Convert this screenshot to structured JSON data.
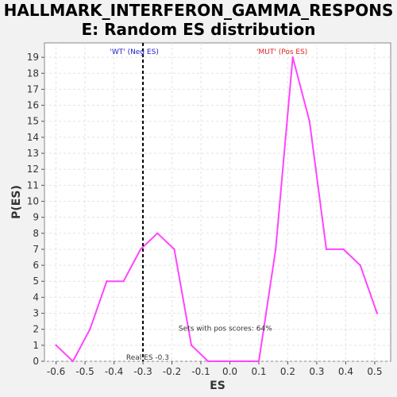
{
  "title_line1": "HALLMARK_INTERFERON_GAMMA_RESPONS",
  "title_line2": "E: Random ES distribution",
  "chart_data": {
    "type": "line",
    "xlabel": "ES",
    "ylabel": "P(ES)",
    "xlim": [
      -0.64,
      0.555
    ],
    "ylim": [
      0,
      19.9
    ],
    "x_ticks": [
      "-0.6",
      "-0.5",
      "-0.4",
      "-0.3",
      "-0.2",
      "-0.1",
      "0.0",
      "0.1",
      "0.2",
      "0.3",
      "0.4",
      "0.5"
    ],
    "y_ticks": [
      "0",
      "1",
      "2",
      "3",
      "4",
      "5",
      "6",
      "7",
      "8",
      "9",
      "10",
      "11",
      "12",
      "13",
      "14",
      "15",
      "16",
      "17",
      "18",
      "19"
    ],
    "grid": true,
    "series": [
      {
        "color": "#ff44ff",
        "x": [
          -0.6,
          -0.542,
          -0.483,
          -0.425,
          -0.367,
          -0.308,
          -0.25,
          -0.192,
          -0.133,
          -0.075,
          -0.017,
          0.042,
          0.1,
          0.158,
          0.217,
          0.275,
          0.333,
          0.392,
          0.45,
          0.508
        ],
        "y": [
          1,
          0,
          2,
          5,
          5,
          7,
          8,
          7,
          1,
          0,
          0,
          0,
          0,
          7,
          19,
          15,
          7,
          7,
          6,
          3
        ]
      }
    ],
    "real_es": {
      "value": -0.3,
      "label": "Real ES -0.3"
    },
    "annotations": {
      "neg": "'WT' (Neg ES)",
      "pos": "'MUT' (Pos ES)",
      "pos_scores": "Sets with pos scores: 64%"
    },
    "colors": {
      "neg": "#2222cc",
      "pos": "#dd2222",
      "line": "#ff44ff"
    }
  }
}
